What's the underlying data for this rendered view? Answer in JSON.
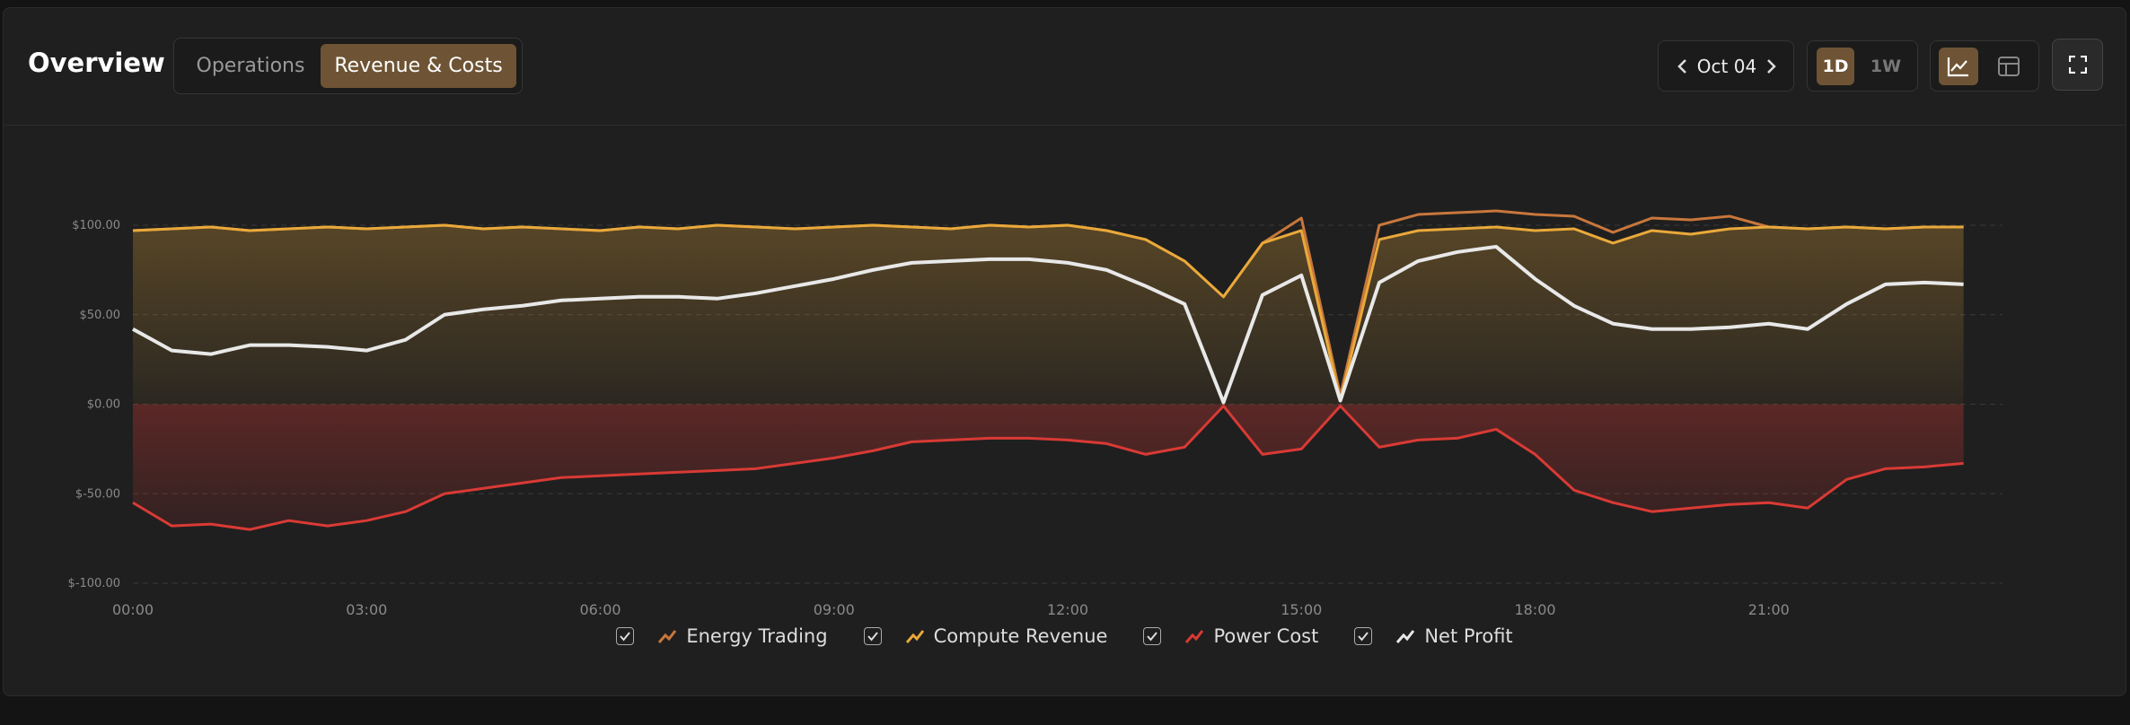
{
  "header": {
    "title": "Overview",
    "tabs": [
      "Operations",
      "Revenue & Costs"
    ],
    "date": "Oct 04",
    "ranges": [
      "1D",
      "1W"
    ]
  },
  "chart_data": {
    "type": "line",
    "x": [
      0,
      0.5,
      1,
      1.5,
      2,
      2.5,
      3,
      3.5,
      4,
      4.5,
      5,
      5.5,
      6,
      6.5,
      7,
      7.5,
      8,
      8.5,
      9,
      9.5,
      10,
      10.5,
      11,
      11.5,
      12,
      12.5,
      13,
      13.5,
      14,
      14.5,
      15,
      15.5,
      16,
      16.5,
      17,
      17.5,
      18,
      18.5,
      19,
      19.5,
      20,
      20.5,
      21,
      21.5,
      22,
      22.5,
      23,
      23.5
    ],
    "xlim": [
      0,
      24
    ],
    "xticks": [
      {
        "value": 0,
        "label": "00:00"
      },
      {
        "value": 3,
        "label": "03:00"
      },
      {
        "value": 6,
        "label": "06:00"
      },
      {
        "value": 9,
        "label": "09:00"
      },
      {
        "value": 12,
        "label": "12:00"
      },
      {
        "value": 15,
        "label": "15:00"
      },
      {
        "value": 18,
        "label": "18:00"
      },
      {
        "value": 21,
        "label": "21:00"
      }
    ],
    "ylim": [
      -100,
      100
    ],
    "yticks": [
      {
        "value": 100,
        "label": "$100.00"
      },
      {
        "value": 50,
        "label": "$50.00"
      },
      {
        "value": 0,
        "label": "$0.00"
      },
      {
        "value": -50,
        "label": "$-50.00"
      },
      {
        "value": -100,
        "label": "$-100.00"
      }
    ],
    "grid": true,
    "series": [
      {
        "name": "Energy Trading",
        "color": "#c8773c",
        "area": false,
        "values": [
          97,
          98,
          99,
          97,
          98,
          99,
          98,
          99,
          100,
          98,
          99,
          98,
          97,
          99,
          98,
          100,
          99,
          98,
          99,
          100,
          99,
          98,
          100,
          99,
          100,
          97,
          92,
          80,
          60,
          90,
          104,
          5,
          100,
          106,
          107,
          108,
          106,
          105,
          96,
          104,
          103,
          105,
          99,
          98,
          99,
          98,
          99,
          99
        ]
      },
      {
        "name": "Compute Revenue",
        "color": "#e9a93a",
        "area": true,
        "values": [
          97,
          98,
          99,
          97,
          98,
          99,
          98,
          99,
          100,
          98,
          99,
          98,
          97,
          99,
          98,
          100,
          99,
          98,
          99,
          100,
          99,
          98,
          100,
          99,
          100,
          97,
          92,
          80,
          60,
          90,
          97,
          2,
          92,
          97,
          98,
          99,
          97,
          98,
          90,
          97,
          95,
          98,
          99,
          98,
          99,
          98,
          99,
          99
        ]
      },
      {
        "name": "Power Cost",
        "color": "#d93a35",
        "area": true,
        "values": [
          -55,
          -68,
          -67,
          -70,
          -65,
          -68,
          -65,
          -60,
          -50,
          -47,
          -44,
          -41,
          -40,
          -39,
          -38,
          -37,
          -36,
          -33,
          -30,
          -26,
          -21,
          -20,
          -19,
          -19,
          -20,
          -22,
          -28,
          -24,
          -1,
          -28,
          -25,
          -1,
          -24,
          -20,
          -19,
          -14,
          -28,
          -48,
          -55,
          -60,
          -58,
          -56,
          -55,
          -58,
          -42,
          -36,
          -35,
          -33
        ]
      },
      {
        "name": "Net Profit",
        "color": "#e8e8e8",
        "area": false,
        "values": [
          42,
          30,
          28,
          33,
          33,
          32,
          30,
          36,
          50,
          53,
          55,
          58,
          59,
          60,
          60,
          59,
          62,
          66,
          70,
          75,
          79,
          80,
          81,
          81,
          79,
          75,
          66,
          56,
          1,
          61,
          72,
          2,
          68,
          80,
          85,
          88,
          70,
          55,
          45,
          42,
          42,
          43,
          45,
          42,
          56,
          67,
          68,
          67
        ]
      }
    ]
  }
}
